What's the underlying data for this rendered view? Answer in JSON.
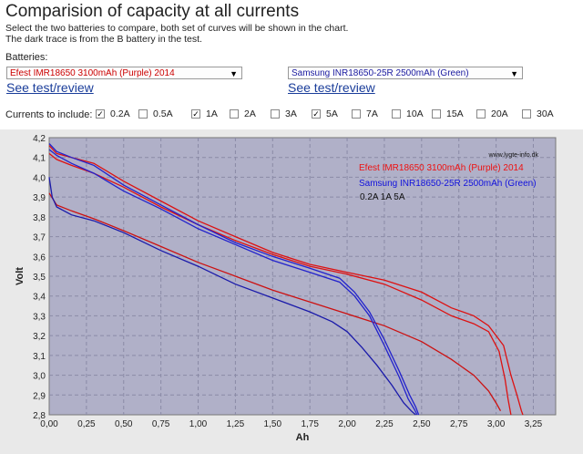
{
  "page": {
    "title": "Comparision of capacity at all currents",
    "desc_line1": "Select the two batteries to compare, both set of curves will be shown in the chart.",
    "desc_line2": "The dark trace is from the B battery in the test."
  },
  "batteries": {
    "label": "Batteries:",
    "a": {
      "value": "Efest IMR18650 3100mAh (Purple) 2014",
      "color": "#cc0000"
    },
    "b": {
      "value": "Samsung INR18650-25R 2500mAh (Green)",
      "color": "#1a1aa0"
    },
    "link_a": "See test/review",
    "link_b": "See test/review"
  },
  "currents": {
    "label": "Currents to include:",
    "options": [
      {
        "label": "0.2A",
        "checked": true
      },
      {
        "label": "0.5A",
        "checked": false
      },
      {
        "label": "1A",
        "checked": true
      },
      {
        "label": "2A",
        "checked": false
      },
      {
        "label": "3A",
        "checked": false
      },
      {
        "label": "5A",
        "checked": true
      },
      {
        "label": "7A",
        "checked": false
      },
      {
        "label": "10A",
        "checked": false
      },
      {
        "label": "15A",
        "checked": false
      },
      {
        "label": "20A",
        "checked": false
      },
      {
        "label": "30A",
        "checked": false
      }
    ]
  },
  "chart_data": {
    "type": "line",
    "xlabel": "Ah",
    "ylabel": "Volt",
    "xlim": [
      0,
      3.4
    ],
    "ylim": [
      2.8,
      4.2
    ],
    "x_ticks": [
      "0,00",
      "0,25",
      "0,50",
      "0,75",
      "1,00",
      "1,25",
      "1,50",
      "1,75",
      "2,00",
      "2,25",
      "2,50",
      "2,75",
      "3,00",
      "3,25"
    ],
    "y_ticks": [
      "2,8",
      "2,9",
      "3,0",
      "3,1",
      "3,2",
      "3,3",
      "3,4",
      "3,5",
      "3,6",
      "3,7",
      "3,8",
      "3,9",
      "4,0",
      "4,1",
      "4,2"
    ],
    "grid": true,
    "watermark": "www.lygte-info.dk",
    "legend": [
      {
        "text": "Efest IMR18650 3100mAh (Purple) 2014",
        "color": "#ee1111"
      },
      {
        "text": "Samsung INR18650-25R 2500mAh (Green)",
        "color": "#1111dd"
      },
      {
        "text": "0.2A 1A 5A",
        "color": "#111111"
      }
    ],
    "series": [
      {
        "color": "#dd1111",
        "x": [
          0,
          0.05,
          0.15,
          0.3,
          0.5,
          0.75,
          1,
          1.25,
          1.5,
          1.75,
          2,
          2.25,
          2.5,
          2.7,
          2.85,
          2.95,
          3.05,
          3.1,
          3.14,
          3.17,
          3.18
        ],
        "y": [
          4.16,
          4.12,
          4.1,
          4.07,
          3.98,
          3.88,
          3.78,
          3.7,
          3.62,
          3.56,
          3.52,
          3.48,
          3.42,
          3.34,
          3.3,
          3.25,
          3.15,
          3.0,
          2.9,
          2.82,
          2.8
        ]
      },
      {
        "color": "#dd1111",
        "x": [
          0,
          0.05,
          0.15,
          0.3,
          0.5,
          0.75,
          1,
          1.25,
          1.5,
          1.75,
          2,
          2.25,
          2.5,
          2.7,
          2.85,
          2.95,
          3.02,
          3.06,
          3.08,
          3.1
        ],
        "y": [
          4.12,
          4.09,
          4.06,
          4.02,
          3.95,
          3.85,
          3.76,
          3.68,
          3.61,
          3.55,
          3.51,
          3.46,
          3.38,
          3.3,
          3.26,
          3.22,
          3.12,
          2.98,
          2.88,
          2.8
        ]
      },
      {
        "color": "#cc1111",
        "x": [
          0,
          0.05,
          0.15,
          0.3,
          0.5,
          0.75,
          1,
          1.25,
          1.5,
          1.75,
          2,
          2.25,
          2.5,
          2.7,
          2.85,
          2.95,
          3.0,
          3.03
        ],
        "y": [
          3.92,
          3.86,
          3.83,
          3.79,
          3.73,
          3.65,
          3.57,
          3.5,
          3.43,
          3.37,
          3.31,
          3.25,
          3.17,
          3.08,
          3.0,
          2.92,
          2.86,
          2.82
        ]
      },
      {
        "color": "#2222cc",
        "x": [
          0,
          0.05,
          0.15,
          0.3,
          0.5,
          0.75,
          1,
          1.25,
          1.5,
          1.75,
          1.95,
          2.05,
          2.15,
          2.25,
          2.35,
          2.42,
          2.46,
          2.48
        ],
        "y": [
          4.17,
          4.13,
          4.1,
          4.06,
          3.96,
          3.86,
          3.76,
          3.67,
          3.6,
          3.54,
          3.49,
          3.42,
          3.32,
          3.18,
          3.02,
          2.9,
          2.84,
          2.8
        ]
      },
      {
        "color": "#2222cc",
        "x": [
          0,
          0.05,
          0.15,
          0.3,
          0.5,
          0.75,
          1,
          1.25,
          1.5,
          1.75,
          1.95,
          2.05,
          2.15,
          2.25,
          2.35,
          2.41,
          2.45,
          2.47
        ],
        "y": [
          4.14,
          4.11,
          4.07,
          4.02,
          3.93,
          3.84,
          3.74,
          3.66,
          3.58,
          3.52,
          3.47,
          3.4,
          3.3,
          3.15,
          2.99,
          2.88,
          2.83,
          2.8
        ]
      },
      {
        "color": "#1a1aaa",
        "x": [
          0,
          0.02,
          0.05,
          0.15,
          0.3,
          0.5,
          0.75,
          1,
          1.25,
          1.5,
          1.75,
          1.9,
          2.0,
          2.1,
          2.2,
          2.3,
          2.38,
          2.43,
          2.46
        ],
        "y": [
          4.0,
          3.9,
          3.85,
          3.81,
          3.78,
          3.72,
          3.63,
          3.55,
          3.46,
          3.39,
          3.32,
          3.27,
          3.22,
          3.14,
          3.05,
          2.95,
          2.86,
          2.82,
          2.8
        ]
      }
    ]
  }
}
